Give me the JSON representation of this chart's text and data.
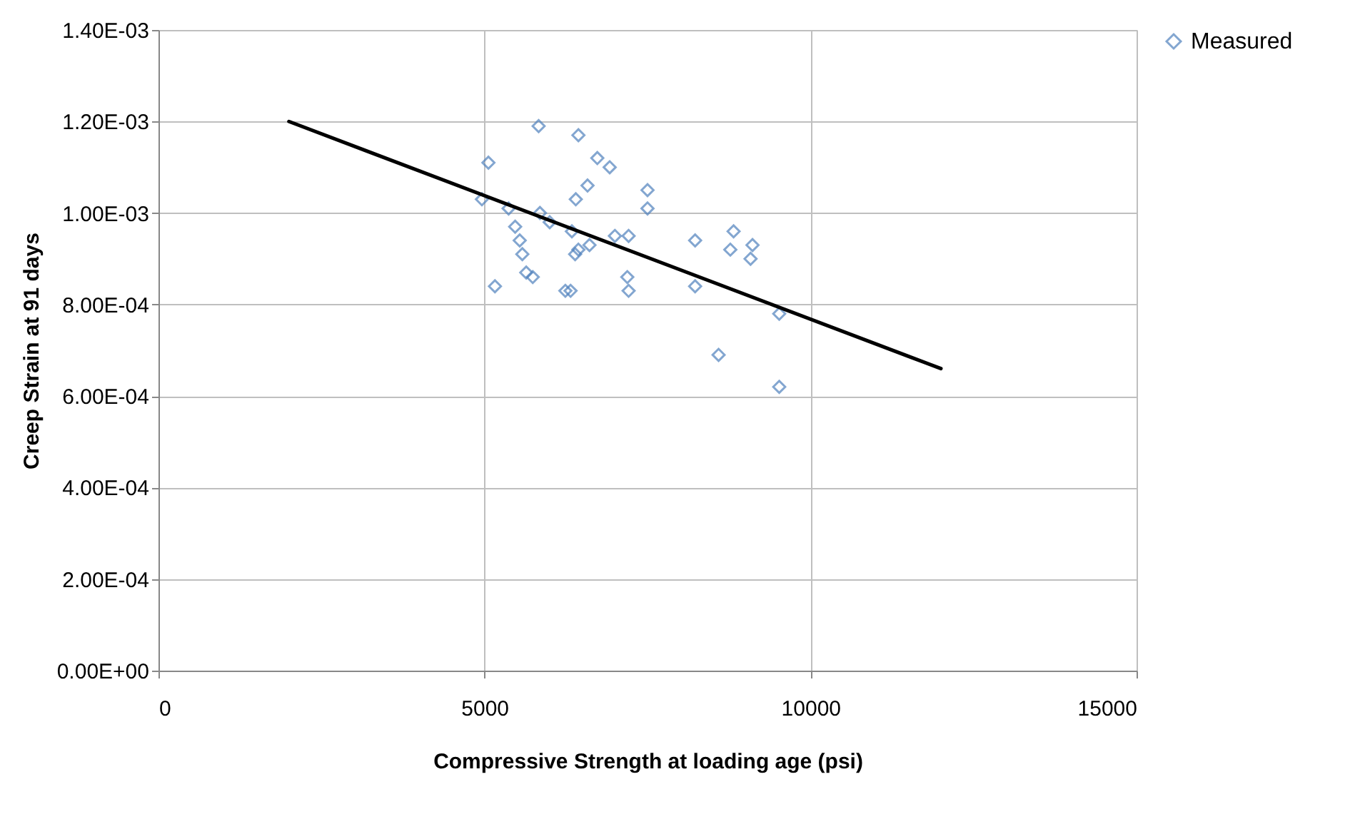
{
  "chart_data": {
    "type": "scatter",
    "xlabel": "Compressive Strength at loading age (psi)",
    "ylabel": "Creep Strain at 91 days",
    "xlim": [
      0,
      15000
    ],
    "xticks": [
      0,
      5000,
      10000,
      15000
    ],
    "ylim": [
      0,
      0.0014
    ],
    "yticks": [
      {
        "value": 0,
        "label": "0.00E+00"
      },
      {
        "value": 0.0002,
        "label": "2.00E-04"
      },
      {
        "value": 0.0004,
        "label": "4.00E-04"
      },
      {
        "value": 0.0006,
        "label": "6.00E-04"
      },
      {
        "value": 0.0008,
        "label": "8.00E-04"
      },
      {
        "value": 0.001,
        "label": "1.00E-03"
      },
      {
        "value": 0.0012,
        "label": "1.20E-03"
      },
      {
        "value": 0.0014,
        "label": "1.40E-03"
      }
    ],
    "grid": true,
    "legend": "right",
    "series": [
      {
        "name": "Measured",
        "marker": "diamond",
        "color": "#4f81bd",
        "x": [
          5060,
          4960,
          5370,
          5850,
          6000,
          5470,
          5540,
          5580,
          5640,
          5740,
          5160,
          6240,
          6320,
          6340,
          6390,
          6440,
          6610,
          6400,
          6580,
          6440,
          6730,
          6920,
          7000,
          7210,
          7190,
          7210,
          7500,
          7500,
          8230,
          8230,
          8820,
          8770,
          9110,
          9080,
          8590,
          9520,
          9520,
          5830
        ],
        "values": [
          0.00111,
          0.00103,
          0.00101,
          0.001,
          0.00098,
          0.00097,
          0.00094,
          0.00091,
          0.00087,
          0.00086,
          0.00084,
          0.00083,
          0.00083,
          0.00096,
          0.00091,
          0.00092,
          0.00093,
          0.00103,
          0.00106,
          0.00117,
          0.00112,
          0.0011,
          0.00095,
          0.00095,
          0.00086,
          0.00083,
          0.00105,
          0.00101,
          0.00094,
          0.00084,
          0.00096,
          0.00092,
          0.00093,
          0.0009,
          0.00069,
          0.00078,
          0.00062,
          0.00119
        ]
      },
      {
        "type": "line",
        "color": "#000000",
        "x": [
          2000,
          12000
        ],
        "values": [
          0.0012,
          0.00066
        ]
      }
    ]
  }
}
